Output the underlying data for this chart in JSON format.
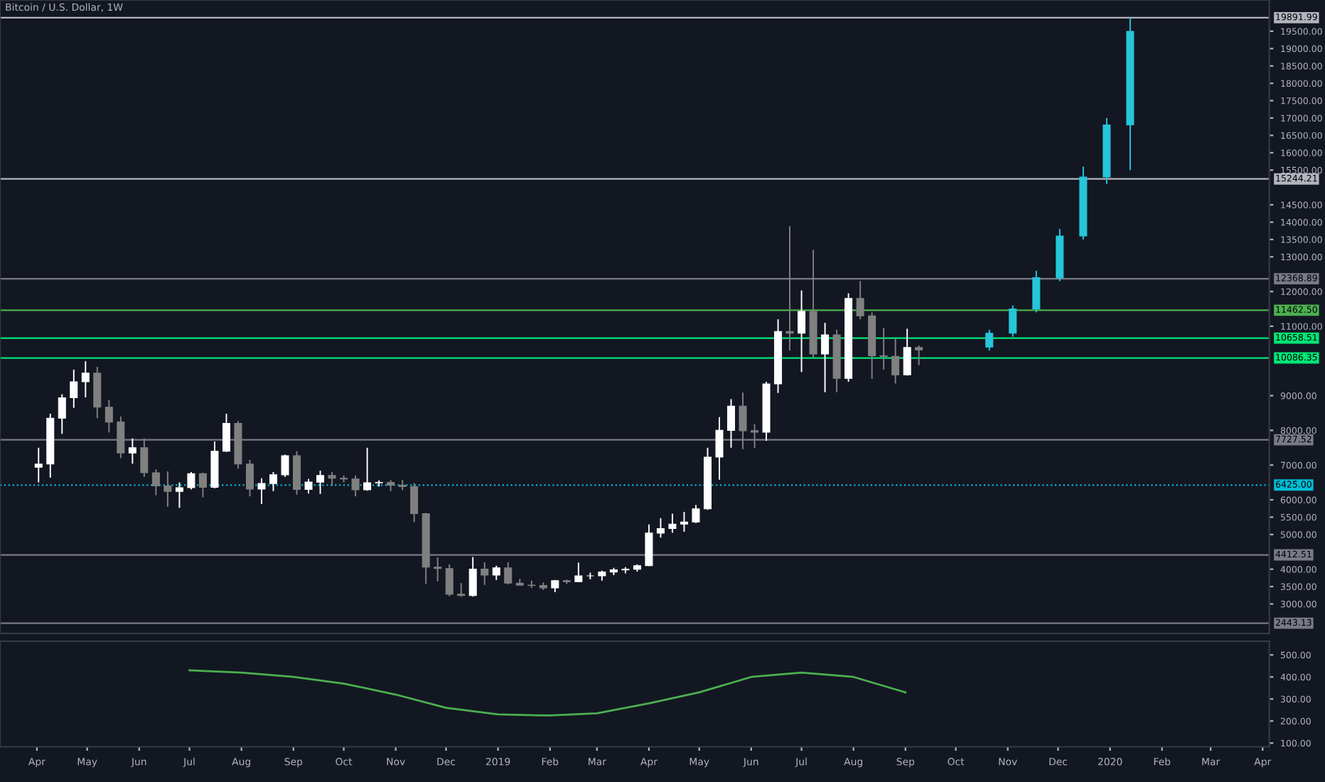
{
  "chart_data": [
    {
      "type": "candlestick",
      "title": "Bitcoin / U.S. Dollar, 1W",
      "series": [
        {
          "colors": [
            "#ffffff",
            "#ffffff",
            "#ffffff",
            "#ffffff",
            "#ffffff",
            "#808080",
            "#808080",
            "#808080",
            "#ffffff",
            "#808080",
            "#808080",
            "#808080",
            "#ffffff",
            "#ffffff",
            "#808080",
            "#ffffff",
            "#ffffff",
            "#808080",
            "#808080",
            "#ffffff",
            "#ffffff",
            "#ffffff",
            "#808080",
            "#ffffff",
            "#ffffff",
            "#808080",
            "#808080",
            "#808080",
            "#ffffff",
            "#ffffff",
            "#808080",
            "#808080",
            "#808080",
            "#808080",
            "#808080",
            "#808080",
            "#808080",
            "#ffffff",
            "#808080",
            "#ffffff",
            "#808080",
            "#808080",
            "#808080",
            "#808080",
            "#ffffff",
            "#808080",
            "#ffffff",
            "#ffffff",
            "#ffffff",
            "#ffffff",
            "#ffffff",
            "#ffffff",
            "#ffffff",
            "#ffffff",
            "#ffffff",
            "#ffffff",
            "#ffffff",
            "#ffffff",
            "#ffffff",
            "#ffffff",
            "#808080",
            "#808080",
            "#ffffff",
            "#ffffff",
            "#808080",
            "#ffffff",
            "#808080",
            "#ffffff",
            "#808080",
            "#ffffff",
            "#808080",
            "#808080",
            "#808080",
            "#808080",
            "#ffffff",
            "#808080"
          ],
          "x": [
            "2018-04-02",
            "2018-04-09",
            "2018-04-16",
            "2018-04-23",
            "2018-04-30",
            "2018-05-07",
            "2018-05-14",
            "2018-05-21",
            "2018-05-28",
            "2018-06-04",
            "2018-06-11",
            "2018-06-18",
            "2018-06-25",
            "2018-07-02",
            "2018-07-09",
            "2018-07-16",
            "2018-07-23",
            "2018-07-30",
            "2018-08-06",
            "2018-08-13",
            "2018-08-20",
            "2018-08-27",
            "2018-09-03",
            "2018-09-10",
            "2018-09-17",
            "2018-09-24",
            "2018-10-01",
            "2018-10-08",
            "2018-10-15",
            "2018-10-22",
            "2018-10-29",
            "2018-11-05",
            "2018-11-12",
            "2018-11-19",
            "2018-11-26",
            "2018-12-03",
            "2018-12-10",
            "2018-12-17",
            "2018-12-24",
            "2018-12-31",
            "2019-01-07",
            "2019-01-14",
            "2019-01-21",
            "2019-01-28",
            "2019-02-04",
            "2019-02-11",
            "2019-02-18",
            "2019-02-25",
            "2019-03-04",
            "2019-03-11",
            "2019-03-18",
            "2019-03-25",
            "2019-04-01",
            "2019-04-08",
            "2019-04-15",
            "2019-04-22",
            "2019-04-29",
            "2019-05-06",
            "2019-05-13",
            "2019-05-20",
            "2019-05-27",
            "2019-06-03",
            "2019-06-10",
            "2019-06-17",
            "2019-06-24",
            "2019-07-01",
            "2019-07-08",
            "2019-07-15",
            "2019-07-22",
            "2019-07-29",
            "2019-08-05",
            "2019-08-12",
            "2019-08-19",
            "2019-08-26",
            "2019-09-02",
            "2019-09-09"
          ],
          "ohlc": [
            [
              6940,
              7500,
              6500,
              7030
            ],
            [
              7030,
              8480,
              6640,
              8350
            ],
            [
              8350,
              9040,
              7900,
              8940
            ],
            [
              8940,
              9750,
              8650,
              9400
            ],
            [
              9400,
              9990,
              8950,
              9650
            ],
            [
              9650,
              9830,
              8350,
              8670
            ],
            [
              8670,
              8880,
              7940,
              8240
            ],
            [
              8240,
              8400,
              7200,
              7350
            ],
            [
              7350,
              7770,
              7040,
              7500
            ],
            [
              7500,
              7770,
              6660,
              6780
            ],
            [
              6780,
              6880,
              6130,
              6400
            ],
            [
              6400,
              6820,
              5800,
              6240
            ],
            [
              6240,
              6500,
              5770,
              6350
            ],
            [
              6350,
              6800,
              6300,
              6750
            ],
            [
              6750,
              6780,
              6070,
              6360
            ],
            [
              6360,
              7680,
              6330,
              7400
            ],
            [
              7400,
              8480,
              7380,
              8200
            ],
            [
              8200,
              8270,
              6900,
              7030
            ],
            [
              7030,
              7150,
              6100,
              6310
            ],
            [
              6310,
              6620,
              5880,
              6470
            ],
            [
              6470,
              6800,
              6250,
              6720
            ],
            [
              6720,
              7300,
              6660,
              7270
            ],
            [
              7270,
              7400,
              6150,
              6300
            ],
            [
              6300,
              6600,
              6180,
              6510
            ],
            [
              6510,
              6840,
              6170,
              6700
            ],
            [
              6700,
              6800,
              6400,
              6620
            ],
            [
              6620,
              6700,
              6500,
              6600
            ],
            [
              6600,
              6700,
              6100,
              6290
            ],
            [
              6290,
              7500,
              6260,
              6490
            ],
            [
              6490,
              6560,
              6380,
              6500
            ],
            [
              6500,
              6570,
              6250,
              6420
            ],
            [
              6420,
              6570,
              6280,
              6380
            ],
            [
              6380,
              6480,
              5360,
              5600
            ],
            [
              5600,
              5620,
              3580,
              4060
            ],
            [
              4060,
              4340,
              3650,
              4020
            ],
            [
              4020,
              4140,
              3220,
              3280
            ],
            [
              3280,
              3600,
              3210,
              3240
            ],
            [
              3240,
              4350,
              3210,
              4000
            ],
            [
              4000,
              4200,
              3550,
              3830
            ],
            [
              3830,
              4100,
              3690,
              4040
            ],
            [
              4040,
              4200,
              3560,
              3600
            ],
            [
              3600,
              3720,
              3540,
              3540
            ],
            [
              3540,
              3670,
              3460,
              3530
            ],
            [
              3530,
              3620,
              3400,
              3460
            ],
            [
              3460,
              3690,
              3340,
              3670
            ],
            [
              3670,
              3700,
              3580,
              3640
            ],
            [
              3640,
              4190,
              3630,
              3810
            ],
            [
              3810,
              3900,
              3710,
              3810
            ],
            [
              3810,
              3960,
              3670,
              3920
            ],
            [
              3920,
              4040,
              3830,
              3980
            ],
            [
              3980,
              4060,
              3880,
              4000
            ],
            [
              4000,
              4140,
              3930,
              4100
            ],
            [
              4100,
              5290,
              4090,
              5040
            ],
            [
              5040,
              5470,
              4910,
              5170
            ],
            [
              5170,
              5600,
              5050,
              5300
            ],
            [
              5300,
              5650,
              5080,
              5360
            ],
            [
              5360,
              5850,
              5330,
              5740
            ],
            [
              5740,
              7500,
              5710,
              7230
            ],
            [
              7230,
              8380,
              6580,
              8000
            ],
            [
              8000,
              8900,
              7500,
              8700
            ],
            [
              8700,
              9090,
              7460,
              7990
            ],
            [
              7990,
              8180,
              7490,
              7950
            ],
            [
              7950,
              9400,
              7700,
              9340
            ],
            [
              9340,
              11200,
              9080,
              10850
            ],
            [
              10850,
              13880,
              10300,
              10800
            ],
            [
              10800,
              12030,
              9680,
              11430
            ],
            [
              11430,
              13200,
              10100,
              10200
            ],
            [
              10200,
              11100,
              9100,
              10750
            ],
            [
              10750,
              10900,
              9100,
              9500
            ],
            [
              9500,
              11950,
              9400,
              11800
            ],
            [
              11800,
              12300,
              11200,
              11300
            ],
            [
              11300,
              11400,
              9480,
              10150
            ],
            [
              10150,
              10950,
              9750,
              10130
            ],
            [
              10130,
              10630,
              9350,
              9600
            ],
            [
              9600,
              10930,
              9580,
              10390
            ],
            [
              10390,
              10450,
              9880,
              10320
            ]
          ]
        },
        {
          "color": "#26c6da",
          "x": [
            "2019-10-21",
            "2019-11-04",
            "2019-11-18",
            "2019-12-02",
            "2019-12-16",
            "2019-12-30",
            "2020-01-13"
          ],
          "ohlc": [
            [
              10400,
              10900,
              10300,
              10800
            ],
            [
              10800,
              11600,
              10700,
              11500
            ],
            [
              11500,
              12600,
              11400,
              12400
            ],
            [
              12400,
              13800,
              12300,
              13600
            ],
            [
              13600,
              15600,
              13500,
              15300
            ],
            [
              15300,
              17000,
              15100,
              16800
            ],
            [
              16800,
              19892,
              15500,
              19500
            ]
          ]
        }
      ],
      "xlim": [
        "2018-03-10",
        "2020-04-05"
      ],
      "ylim": [
        2150,
        20400
      ],
      "yticks": [
        {
          "value": 3000,
          "label": "3000.00"
        },
        {
          "value": 3500,
          "label": "3500.00"
        },
        {
          "value": 4000,
          "label": "4000.00"
        },
        {
          "value": 5000,
          "label": "5000.00"
        },
        {
          "value": 5500,
          "label": "5500.00"
        },
        {
          "value": 6000,
          "label": "6000.00"
        },
        {
          "value": 7000,
          "label": "7000.00"
        },
        {
          "value": 8000,
          "label": "8000.00"
        },
        {
          "value": 9000,
          "label": "9000.00"
        },
        {
          "value": 11000,
          "label": "11000.00"
        },
        {
          "value": 12000,
          "label": "12000.00"
        },
        {
          "value": 13000,
          "label": "13000.00"
        },
        {
          "value": 13500,
          "label": "13500.00"
        },
        {
          "value": 14000,
          "label": "14000.00"
        },
        {
          "value": 14500,
          "label": "14500.00"
        },
        {
          "value": 15500,
          "label": "15500.00"
        },
        {
          "value": 16000,
          "label": "16000.00"
        },
        {
          "value": 16500,
          "label": "16500.00"
        },
        {
          "value": 17000,
          "label": "17000.00"
        },
        {
          "value": 17500,
          "label": "17500.00"
        },
        {
          "value": 18000,
          "label": "18000.00"
        },
        {
          "value": 18500,
          "label": "18500.00"
        },
        {
          "value": 19000,
          "label": "19000.00"
        },
        {
          "value": 19500,
          "label": "19500.00"
        }
      ],
      "ref_lines": [
        {
          "axis": "y",
          "value": 19891.99,
          "label": "19891.99",
          "color": "#b2b5be"
        },
        {
          "axis": "y",
          "value": 15244.21,
          "label": "15244.21",
          "color": "#b2b5be"
        },
        {
          "axis": "y",
          "value": 12368.89,
          "label": "12368.89",
          "color": "#787b86"
        },
        {
          "axis": "y",
          "value": 11462.5,
          "label": "11462.50",
          "color": "#4caf50"
        },
        {
          "axis": "y",
          "value": 10658.51,
          "label": "10658.51",
          "color": "#00e676"
        },
        {
          "axis": "y",
          "value": 10086.35,
          "label": "10086.35",
          "color": "#00e676"
        },
        {
          "axis": "y",
          "value": 7727.52,
          "label": "7727.52",
          "color": "#787b86"
        },
        {
          "axis": "y",
          "value": 6425,
          "label": "6425.00",
          "color": "#00bcd4",
          "line_style": "dotted"
        },
        {
          "axis": "y",
          "value": 4412.51,
          "label": "4412.51",
          "color": "#787b86"
        },
        {
          "axis": "y",
          "value": 2443.13,
          "label": "2443.13",
          "color": "#787b86"
        }
      ],
      "tick_labels": "y",
      "grid": false,
      "legend": false
    },
    {
      "type": "line",
      "series": [
        {
          "color": "#4caf50",
          "x": [
            "2018-07-01",
            "2018-08-01",
            "2018-09-01",
            "2018-10-01",
            "2018-11-01",
            "2018-12-01",
            "2019-01-01",
            "2019-02-01",
            "2019-03-01",
            "2019-04-01",
            "2019-05-01",
            "2019-06-01",
            "2019-07-01",
            "2019-08-01",
            "2019-09-01"
          ],
          "values": [
            430,
            420,
            400,
            370,
            320,
            260,
            230,
            225,
            235,
            280,
            330,
            400,
            420,
            400,
            330
          ]
        }
      ],
      "xlim": [
        "2018-03-10",
        "2020-04-05"
      ],
      "ylim": [
        83,
        562
      ],
      "yticks": [
        {
          "value": 100,
          "label": "100.00"
        },
        {
          "value": 200,
          "label": "200.00"
        },
        {
          "value": 300,
          "label": "300.00"
        },
        {
          "value": 400,
          "label": "400.00"
        },
        {
          "value": 500,
          "label": "500.00"
        }
      ],
      "xticks": [
        {
          "value": "2018-04-01",
          "label": "Apr"
        },
        {
          "value": "2018-05-01",
          "label": "May"
        },
        {
          "value": "2018-06-01",
          "label": "Jun"
        },
        {
          "value": "2018-07-01",
          "label": "Jul"
        },
        {
          "value": "2018-08-01",
          "label": "Aug"
        },
        {
          "value": "2018-09-01",
          "label": "Sep"
        },
        {
          "value": "2018-10-01",
          "label": "Oct"
        },
        {
          "value": "2018-11-01",
          "label": "Nov"
        },
        {
          "value": "2018-12-01",
          "label": "Dec"
        },
        {
          "value": "2019-01-01",
          "label": "2019"
        },
        {
          "value": "2019-02-01",
          "label": "Feb"
        },
        {
          "value": "2019-03-01",
          "label": "Mar"
        },
        {
          "value": "2019-04-01",
          "label": "Apr"
        },
        {
          "value": "2019-05-01",
          "label": "May"
        },
        {
          "value": "2019-06-01",
          "label": "Jun"
        },
        {
          "value": "2019-07-01",
          "label": "Jul"
        },
        {
          "value": "2019-08-01",
          "label": "Aug"
        },
        {
          "value": "2019-09-01",
          "label": "Sep"
        },
        {
          "value": "2019-10-01",
          "label": "Oct"
        },
        {
          "value": "2019-11-01",
          "label": "Nov"
        },
        {
          "value": "2019-12-01",
          "label": "Dec"
        },
        {
          "value": "2020-01-01",
          "label": "2020"
        },
        {
          "value": "2020-02-01",
          "label": "Feb"
        },
        {
          "value": "2020-03-01",
          "label": "Mar"
        },
        {
          "value": "2020-04-01",
          "label": "Apr"
        }
      ],
      "grid": false,
      "legend": false,
      "marker": "none"
    }
  ]
}
